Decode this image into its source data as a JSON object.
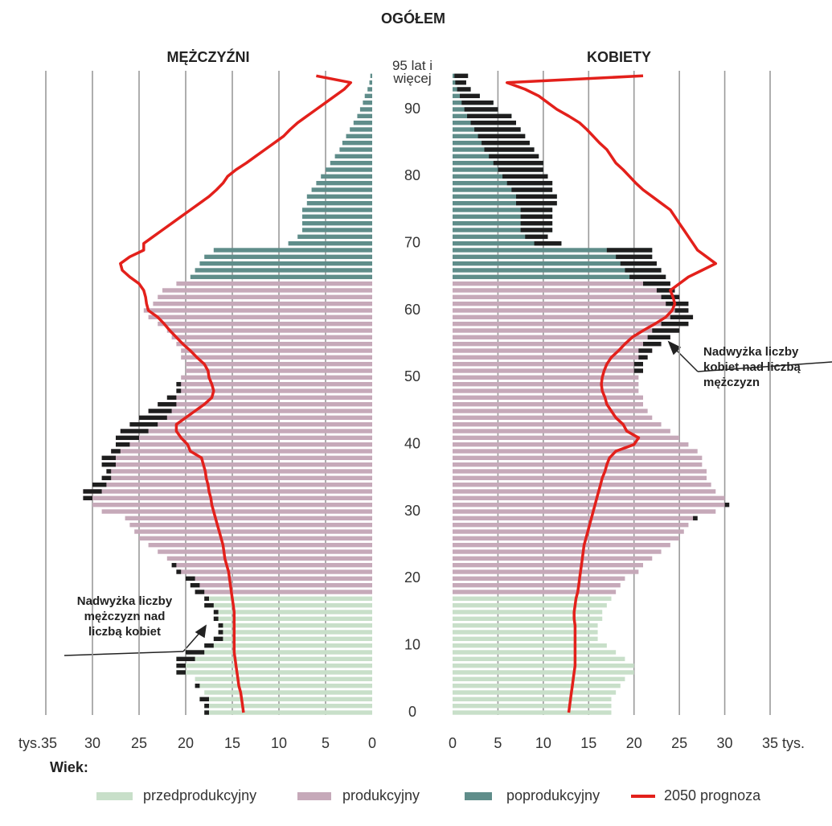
{
  "chart_data": {
    "type": "pyramid",
    "title": "OGÓŁEM",
    "categories": [
      0,
      null,
      null,
      null,
      null,
      null,
      null,
      null,
      null,
      null,
      10,
      null,
      null,
      null,
      null,
      null,
      null,
      null,
      null,
      null,
      20,
      null,
      null,
      null,
      null,
      null,
      null,
      null,
      null,
      null,
      30,
      null,
      null,
      null,
      null,
      null,
      null,
      null,
      null,
      null,
      40,
      null,
      null,
      null,
      null,
      null,
      null,
      null,
      null,
      null,
      50,
      null,
      null,
      null,
      null,
      null,
      null,
      null,
      null,
      null,
      60,
      null,
      null,
      null,
      null,
      null,
      null,
      null,
      null,
      null,
      70,
      null,
      null,
      null,
      null,
      null,
      null,
      null,
      null,
      null,
      80,
      null,
      null,
      null,
      null,
      null,
      null,
      null,
      null,
      null,
      90,
      null,
      null,
      null,
      null,
      "95 lat i więcej"
    ],
    "bar_colors": [
      "#c8dfc9",
      "#c8dfc9",
      "#c8dfc9",
      "#c8dfc9",
      "#c8dfc9",
      "#c8dfc9",
      "#c8dfc9",
      "#c8dfc9",
      "#c8dfc9",
      "#c8dfc9",
      "#c8dfc9",
      "#c8dfc9",
      "#c8dfc9",
      "#c8dfc9",
      "#c8dfc9",
      "#c8dfc9",
      "#c8dfc9",
      "#c8dfc9",
      "#c6a9b9",
      "#c6a9b9",
      "#c6a9b9",
      "#c6a9b9",
      "#c6a9b9",
      "#c6a9b9",
      "#c6a9b9",
      "#c6a9b9",
      "#c6a9b9",
      "#c6a9b9",
      "#c6a9b9",
      "#c6a9b9",
      "#c6a9b9",
      "#c6a9b9",
      "#c6a9b9",
      "#c6a9b9",
      "#c6a9b9",
      "#c6a9b9",
      "#c6a9b9",
      "#c6a9b9",
      "#c6a9b9",
      "#c6a9b9",
      "#c6a9b9",
      "#c6a9b9",
      "#c6a9b9",
      "#c6a9b9",
      "#c6a9b9",
      "#c6a9b9",
      "#c6a9b9",
      "#c6a9b9",
      "#c6a9b9",
      "#c6a9b9",
      "#c6a9b9",
      "#c6a9b9",
      "#c6a9b9",
      "#c6a9b9",
      "#c6a9b9",
      "#c6a9b9",
      "#c6a9b9",
      "#c6a9b9",
      "#c6a9b9",
      "#c6a9b9",
      "#c6a9b9",
      "#c6a9b9",
      "#c6a9b9",
      "#c6a9b9",
      "#c6a9b9",
      "#5f8d8a",
      "#5f8d8a",
      "#5f8d8a",
      "#5f8d8a",
      "#5f8d8a",
      "#5f8d8a",
      "#5f8d8a",
      "#5f8d8a",
      "#5f8d8a",
      "#5f8d8a",
      "#5f8d8a",
      "#5f8d8a",
      "#5f8d8a",
      "#5f8d8a",
      "#5f8d8a",
      "#5f8d8a",
      "#5f8d8a",
      "#5f8d8a",
      "#5f8d8a",
      "#5f8d8a",
      "#5f8d8a",
      "#5f8d8a",
      "#5f8d8a",
      "#5f8d8a",
      "#5f8d8a",
      "#5f8d8a",
      "#5f8d8a",
      "#5f8d8a",
      "#5f8d8a",
      "#5f8d8a",
      "#5f8d8a"
    ],
    "excess_color": "#1e1e1e",
    "xlim": [
      0,
      35
    ],
    "series": [
      {
        "name": "MĘŻCZYŹNI",
        "side": "left",
        "xticks": [
          0,
          5,
          10,
          15,
          20,
          25,
          30,
          {
            "value": 35,
            "label": "tys.35"
          }
        ],
        "values": [
          18,
          18,
          18.5,
          18,
          19,
          19,
          21,
          21,
          21,
          20,
          18,
          17,
          16.5,
          16.5,
          17,
          17,
          18,
          18,
          19,
          19.5,
          20,
          21,
          21.5,
          22,
          23,
          24,
          25,
          25.5,
          26,
          26.5,
          29,
          30,
          31,
          31,
          30,
          29,
          28.5,
          29,
          29,
          28,
          27.5,
          27.5,
          27,
          26,
          25,
          24,
          23,
          22,
          21,
          21,
          20.5,
          20,
          20,
          20.5,
          20.5,
          21,
          21.5,
          22,
          23,
          24,
          24.5,
          23.5,
          23,
          22.5,
          21,
          19.5,
          19,
          18.5,
          18,
          17,
          9,
          8,
          7.5,
          7.5,
          7.5,
          7.5,
          7,
          7,
          6.5,
          6,
          5.5,
          5,
          4.5,
          4,
          3.5,
          3.2,
          2.8,
          2.4,
          2,
          1.6,
          1.3,
          1,
          0.8,
          0.5,
          0.3,
          0.2
        ],
        "forecast": [
          13.8,
          13.9,
          14,
          14.1,
          14.3,
          14.4,
          14.5,
          14.6,
          14.7,
          14.8,
          14.8,
          14.8,
          14.8,
          14.8,
          14.8,
          14.8,
          14.9,
          15,
          15.1,
          15.2,
          15.3,
          15.4,
          15.6,
          15.8,
          15.9,
          16,
          16.2,
          16.4,
          16.6,
          16.8,
          17,
          17.2,
          17.3,
          17.5,
          17.6,
          17.8,
          17.9,
          18.1,
          18.3,
          19.5,
          19.8,
          20.5,
          21,
          21,
          20,
          19,
          18,
          17.2,
          17,
          17.2,
          17.5,
          17.6,
          18,
          18.8,
          19.5,
          20.3,
          21,
          21.7,
          22.3,
          23,
          24,
          24.2,
          24.3,
          24.5,
          25,
          26,
          26.8,
          27,
          26,
          24.5,
          24.5,
          23.5,
          22.5,
          21.5,
          20.5,
          19.5,
          18.5,
          17.5,
          16.7,
          16,
          15.5,
          14.6,
          13.5,
          12.5,
          11.5,
          10.5,
          9.5,
          8.8,
          8,
          7,
          6,
          5,
          4,
          3,
          2.3,
          6
        ]
      },
      {
        "name": "KOBIETY",
        "side": "right",
        "xticks": [
          0,
          5,
          10,
          15,
          20,
          25,
          30,
          {
            "value": 35,
            "label": "35 tys."
          }
        ],
        "values": [
          17.5,
          17.5,
          17.5,
          18,
          18.5,
          19,
          20,
          20,
          19,
          18,
          17,
          16,
          16,
          16,
          16.5,
          16.5,
          17,
          17.5,
          18,
          18.5,
          19,
          20.5,
          21,
          22,
          23,
          24,
          25,
          25.5,
          26,
          27,
          29,
          30.5,
          30,
          29,
          28.5,
          28,
          28,
          27.5,
          27.5,
          27,
          26,
          25,
          24,
          23,
          22,
          21.5,
          21,
          21,
          20.5,
          20.5,
          20.5,
          21,
          21,
          21.5,
          22,
          23,
          24,
          25,
          26,
          26.5,
          26,
          26,
          25,
          24.5,
          24,
          23.5,
          23,
          22.5,
          22,
          22,
          12,
          10.5,
          11,
          11,
          11,
          11,
          11.5,
          11.5,
          11,
          11,
          10.5,
          10,
          10,
          9.5,
          9,
          8.5,
          8,
          7.5,
          7,
          6.5,
          5,
          4.5,
          3,
          2,
          1.5,
          1.7
        ],
        "forecast": [
          12.8,
          12.9,
          13,
          13.1,
          13.2,
          13.3,
          13.4,
          13.5,
          13.5,
          13.5,
          13.5,
          13.5,
          13.5,
          13.5,
          13.4,
          13.4,
          13.5,
          13.6,
          13.8,
          13.9,
          14,
          14.1,
          14.2,
          14.3,
          14.4,
          14.5,
          14.7,
          14.9,
          15.1,
          15.3,
          15.5,
          15.7,
          15.9,
          16.1,
          16.3,
          16.5,
          16.8,
          17,
          17.3,
          18,
          20,
          20.5,
          19.2,
          18.8,
          18,
          17.5,
          17,
          16.8,
          16.5,
          16.4,
          16.5,
          16.7,
          17,
          17.5,
          18.3,
          19,
          19.8,
          21,
          22.3,
          23.5,
          24.2,
          24.5,
          24.3,
          24,
          25,
          26,
          27.5,
          29,
          28,
          27,
          26.5,
          26,
          25.5,
          25,
          24.5,
          24,
          23,
          22,
          21,
          20.2,
          19.5,
          18.8,
          18,
          17.5,
          17,
          16.2,
          15.5,
          14.8,
          14,
          12.8,
          11.5,
          10.5,
          9.5,
          8,
          6,
          21
        ]
      }
    ],
    "forecast_color": "#e3201b",
    "annotations": [
      {
        "lines": [
          "Nadwyżka liczby",
          "kobiet nad liczbą",
          "mężczyzn"
        ]
      },
      {
        "lines": [
          "Nadwyżka liczby",
          "mężczyzn nad",
          "liczbą kobiet"
        ]
      }
    ],
    "legend": {
      "title": "Wiek:",
      "items": [
        {
          "name": "przedprodukcyjny",
          "color": "#c8dfc9"
        },
        {
          "name": "produkcyjny",
          "color": "#c6a9b9"
        },
        {
          "name": "poprodukcyjny",
          "color": "#5f8d8a"
        },
        {
          "name": "2050 prognoza",
          "color": "#e3201b"
        }
      ]
    }
  }
}
